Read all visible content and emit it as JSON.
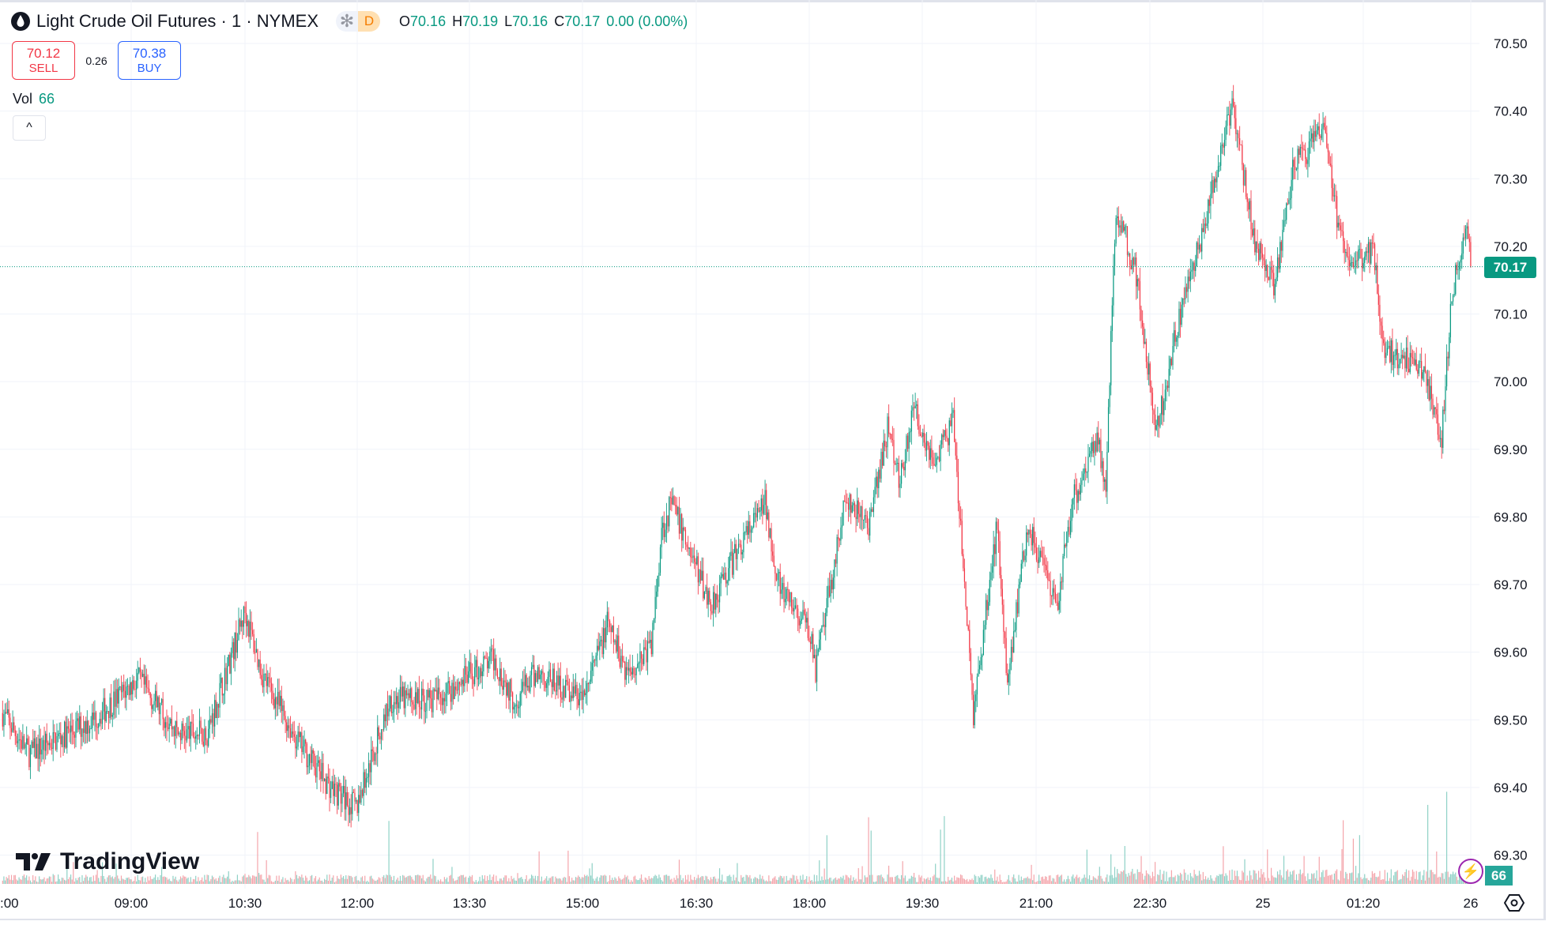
{
  "header": {
    "symbol_title": "Light Crude Oil Futures · 1 · NYMEX",
    "badge_asterisk": "✻",
    "badge_letter": "D",
    "ohlc": {
      "o_label": "O",
      "o": "70.16",
      "h_label": "H",
      "h": "70.19",
      "l_label": "L",
      "l": "70.16",
      "c_label": "C",
      "c": "70.17",
      "change": "0.00 (0.00%)"
    }
  },
  "trade": {
    "sell_price": "70.12",
    "sell_label": "SELL",
    "spread": "0.26",
    "buy_price": "70.38",
    "buy_label": "BUY"
  },
  "volume_legend": {
    "label": "Vol",
    "value": "66"
  },
  "collapse_button": "^",
  "logo_text": "TradingView",
  "colors": {
    "up": "#089981",
    "down": "#f23645",
    "grid": "#f0f3fa",
    "last_price": "#089981"
  },
  "chart_data": {
    "type": "candlestick",
    "title": "Light Crude Oil Futures · 1 · NYMEX",
    "interval_minutes": 1,
    "ylim": [
      69.25,
      70.53
    ],
    "y_ticks": [
      "70.50",
      "70.40",
      "70.30",
      "70.20",
      "70.10",
      "70.00",
      "69.90",
      "69.80",
      "69.70",
      "69.60",
      "69.50",
      "69.40",
      "69.30"
    ],
    "x_ticks": [
      ":00",
      "09:00",
      "10:30",
      "12:00",
      "13:30",
      "15:00",
      "16:30",
      "18:00",
      "19:30",
      "21:00",
      "22:30",
      "25",
      "01:20",
      "26"
    ],
    "grid": true,
    "last_price": "70.17",
    "last_volume": "66",
    "approx_price_path": [
      [
        "07:18",
        69.51
      ],
      [
        "07:39",
        69.45
      ],
      [
        "08:30",
        69.5
      ],
      [
        "09:05",
        69.56
      ],
      [
        "09:37",
        69.48
      ],
      [
        "10:00",
        69.48
      ],
      [
        "10:30",
        69.66
      ],
      [
        "10:43",
        69.57
      ],
      [
        "11:11",
        69.47
      ],
      [
        "11:38",
        69.4
      ],
      [
        "11:58",
        69.37
      ],
      [
        "12:25",
        69.53
      ],
      [
        "13:00",
        69.53
      ],
      [
        "13:47",
        69.59
      ],
      [
        "14:03",
        69.53
      ],
      [
        "14:22",
        69.57
      ],
      [
        "14:58",
        69.53
      ],
      [
        "15:17",
        69.64
      ],
      [
        "15:33",
        69.57
      ],
      [
        "15:52",
        69.61
      ],
      [
        "16:00",
        69.78
      ],
      [
        "16:08",
        69.82
      ],
      [
        "16:39",
        69.67
      ],
      [
        "17:03",
        69.76
      ],
      [
        "17:22",
        69.82
      ],
      [
        "17:34",
        69.69
      ],
      [
        "17:58",
        69.63
      ],
      [
        "18:02",
        69.57
      ],
      [
        "18:25",
        69.82
      ],
      [
        "18:45",
        69.79
      ],
      [
        "19:00",
        69.94
      ],
      [
        "19:08",
        69.85
      ],
      [
        "19:20",
        69.96
      ],
      [
        "19:36",
        69.88
      ],
      [
        "19:51",
        69.94
      ],
      [
        "20:07",
        69.51
      ],
      [
        "20:26",
        69.79
      ],
      [
        "20:34",
        69.56
      ],
      [
        "20:50",
        69.79
      ],
      [
        "21:13",
        69.66
      ],
      [
        "21:25",
        69.82
      ],
      [
        "21:45",
        69.92
      ],
      [
        "21:52",
        69.85
      ],
      [
        "22:00",
        70.26
      ],
      [
        "22:16",
        70.16
      ],
      [
        "22:32",
        69.92
      ],
      [
        "22:47",
        70.07
      ],
      [
        "23:07",
        70.21
      ],
      [
        "23:15",
        70.27
      ],
      [
        "23:32",
        70.41
      ],
      [
        "23:50",
        70.21
      ],
      [
        "00:05",
        70.14
      ],
      [
        "00:21",
        70.32
      ],
      [
        "00:45",
        70.37
      ],
      [
        "00:56",
        70.23
      ],
      [
        "01:08",
        70.17
      ],
      [
        "01:24",
        70.2
      ],
      [
        "01:32",
        70.05
      ],
      [
        "02:03",
        70.02
      ],
      [
        "02:18",
        69.92
      ],
      [
        "02:26",
        70.13
      ],
      [
        "02:38",
        70.23
      ],
      [
        "02:41",
        70.17
      ]
    ]
  }
}
